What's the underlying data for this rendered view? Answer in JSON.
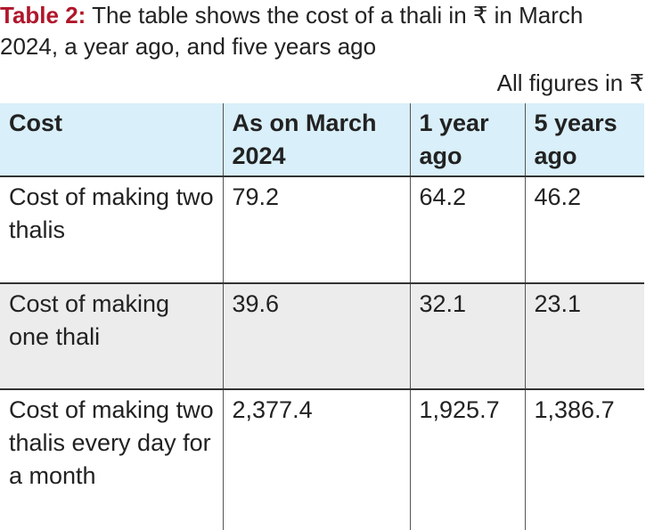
{
  "title": {
    "label": "Table 2:",
    "text": " The table shows the cost of a thali in ₹ in March 2024, a year ago, and five years ago"
  },
  "units_note": "All figures in ₹",
  "table": {
    "headers": [
      "Cost",
      "As on March 2024",
      "1 year ago",
      "5 years ago"
    ],
    "rows": [
      [
        "Cost of making two thalis",
        "79.2",
        "64.2",
        "46.2"
      ],
      [
        "Cost of making one thali",
        "39.6",
        "32.1",
        "23.1"
      ],
      [
        "Cost of making two thalis every day for a month",
        "2,377.4",
        "1,925.7",
        "1,386.7"
      ]
    ]
  },
  "colors": {
    "label_red": "#b0162b",
    "header_bg": "#d9eff9",
    "alt_row_bg": "#ececec"
  }
}
